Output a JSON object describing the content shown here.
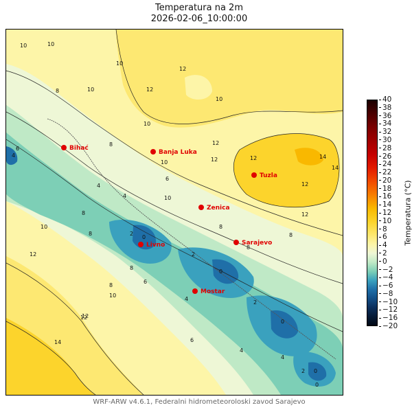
{
  "title": {
    "line1": "Temperatura na 2m",
    "line2": "2026-02-06_10:00:00"
  },
  "footer": "WRF-ARW v4.6.1, Federalni hidrometeoroloski zavod Sarajevo",
  "colorbar": {
    "label": "Temperatura (°C)",
    "ticks": [
      "40",
      "38",
      "36",
      "34",
      "32",
      "30",
      "28",
      "26",
      "24",
      "22",
      "20",
      "18",
      "16",
      "14",
      "12",
      "10",
      "8",
      "6",
      "4",
      "2",
      "0",
      "−2",
      "−4",
      "−6",
      "−8",
      "−10",
      "−12",
      "−16",
      "−20"
    ]
  },
  "cities": [
    {
      "name": "Bihać"
    },
    {
      "name": "Banja Luka"
    },
    {
      "name": "Tuzla"
    },
    {
      "name": "Zenica"
    },
    {
      "name": "Sarajevo"
    },
    {
      "name": "Livno"
    },
    {
      "name": "Mostar"
    }
  ],
  "contour_labels": [
    "10",
    "10",
    "10",
    "10",
    "12",
    "12",
    "12",
    "10",
    "10",
    "8",
    "8",
    "8",
    "10",
    "12",
    "12",
    "12",
    "14",
    "14",
    "12",
    "12",
    "10",
    "8",
    "6",
    "6",
    "4",
    "4",
    "4",
    "4",
    "4",
    "4",
    "2",
    "2",
    "2",
    "2",
    "0",
    "0",
    "0",
    "0",
    "0",
    "6",
    "6",
    "8",
    "8",
    "8",
    "10",
    "12",
    "12",
    "14",
    "8",
    "8",
    "10"
  ],
  "colors": {
    "t0": "#1f6fa8",
    "t2": "#3aa1be",
    "t4": "#7dcfb6",
    "t6": "#bfe9c6",
    "t8": "#eef7d6",
    "t10": "#fdf5a8",
    "t12": "#fde872",
    "t14": "#fcd42c",
    "t16": "#f9b800",
    "marker": "#e00000"
  }
}
